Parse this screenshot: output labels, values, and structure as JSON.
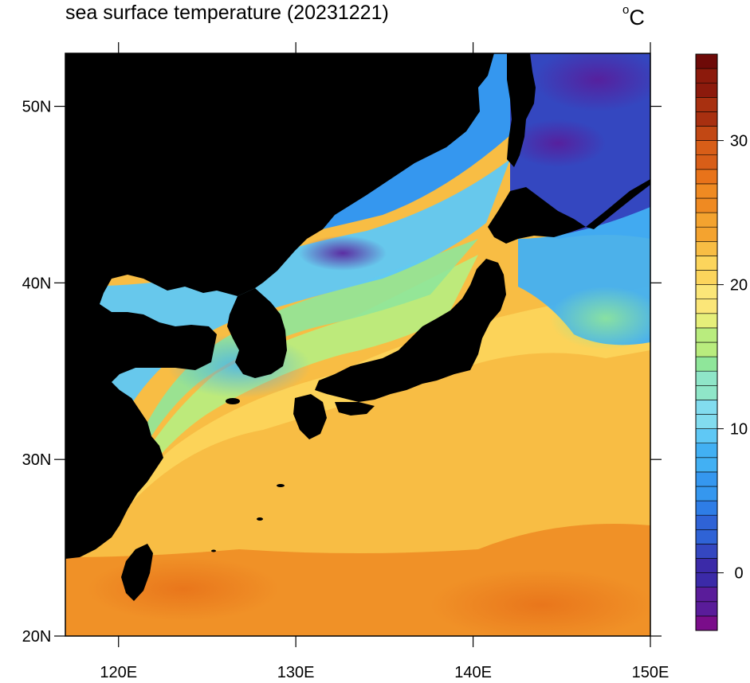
{
  "title": "sea surface temperature (20231221)",
  "unit": "°C",
  "unit_parts": {
    "degree": "o",
    "letter": "C"
  },
  "map": {
    "projection": "cylindrical-equidistant",
    "lon_range": [
      117,
      150
    ],
    "lat_range": [
      20,
      53
    ],
    "lon_ticks": [
      {
        "value": 120,
        "label": "120E"
      },
      {
        "value": 130,
        "label": "130E"
      },
      {
        "value": 140,
        "label": "140E"
      },
      {
        "value": 150,
        "label": "150E"
      }
    ],
    "lat_ticks": [
      {
        "value": 20,
        "label": "20N"
      },
      {
        "value": 30,
        "label": "30N"
      },
      {
        "value": 40,
        "label": "40N"
      },
      {
        "value": 50,
        "label": "50N"
      }
    ],
    "land_color": "#000000"
  },
  "colorbar": {
    "range": [
      -4,
      36
    ],
    "step": 1,
    "tick_labels": [
      {
        "value": 0,
        "label": "0"
      },
      {
        "value": 10,
        "label": "10"
      },
      {
        "value": 20,
        "label": "20"
      },
      {
        "value": 30,
        "label": "30"
      }
    ],
    "palette": [
      "#7a0d8a",
      "#5a1c9a",
      "#3b2aa8",
      "#3447c0",
      "#2f63d6",
      "#2e7de6",
      "#3597ef",
      "#42b0f3",
      "#5fc8f5",
      "#82dcef",
      "#8fe6c8",
      "#8fe69a",
      "#b9ec7e",
      "#e6ef7a",
      "#fbe678",
      "#fcd55c",
      "#f8bd44",
      "#f4a32f",
      "#ef8a22",
      "#e8731a",
      "#d85e18",
      "#c24814",
      "#a83010",
      "#8c1a0c",
      "#6e0a08"
    ]
  },
  "sst_samples": [
    {
      "lon": 120,
      "lat": 22,
      "sst": 26
    },
    {
      "lon": 125,
      "lat": 26,
      "sst": 24
    },
    {
      "lon": 130,
      "lat": 25,
      "sst": 24
    },
    {
      "lon": 140,
      "lat": 22,
      "sst": 27
    },
    {
      "lon": 145,
      "lat": 30,
      "sst": 22
    },
    {
      "lon": 135,
      "lat": 32,
      "sst": 21
    },
    {
      "lon": 126,
      "lat": 33,
      "sst": 15
    },
    {
      "lon": 122,
      "lat": 31,
      "sst": 11
    },
    {
      "lon": 134,
      "lat": 39,
      "sst": 12
    },
    {
      "lon": 133,
      "lat": 42,
      "sst": 2
    },
    {
      "lon": 141,
      "lat": 41,
      "sst": 7
    },
    {
      "lon": 145,
      "lat": 37,
      "sst": 16
    },
    {
      "lon": 146,
      "lat": 50,
      "sst": 0
    },
    {
      "lon": 120,
      "lat": 39,
      "sst": 4
    }
  ]
}
